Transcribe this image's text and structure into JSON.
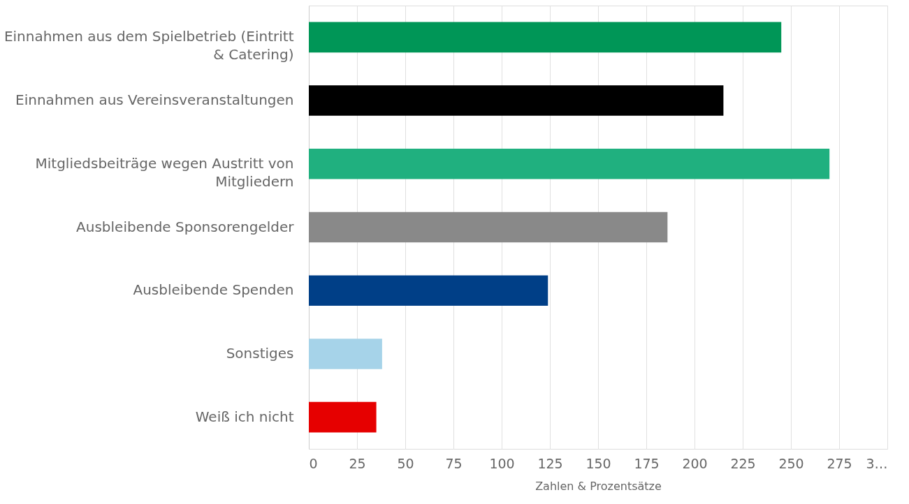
{
  "chart_data": {
    "type": "bar",
    "orientation": "horizontal",
    "xlabel": "Zahlen & Prozentsätze",
    "categories": [
      "Einnahmen aus dem Spielbetrieb (Eintritt & Catering)",
      "Einnahmen aus Vereinsveranstaltungen",
      "Mitgliedsbeiträge wegen Austritt von Mitgliedern",
      "Ausbleibende Sponsorengelder",
      "Ausbleibende Spenden",
      "Sonstiges",
      "Weiß ich nicht"
    ],
    "values": [
      245,
      215,
      270,
      186,
      124,
      38,
      35
    ],
    "colors": [
      "#009657",
      "#000000",
      "#20b07f",
      "#898989",
      "#003f87",
      "#a6d3e9",
      "#e60000"
    ],
    "xlim": [
      0,
      300
    ],
    "xticks": [
      0,
      25,
      50,
      75,
      100,
      125,
      150,
      175,
      200,
      225,
      250,
      275,
      {
        "value": 300,
        "label": "3…"
      }
    ],
    "grid": "x"
  }
}
